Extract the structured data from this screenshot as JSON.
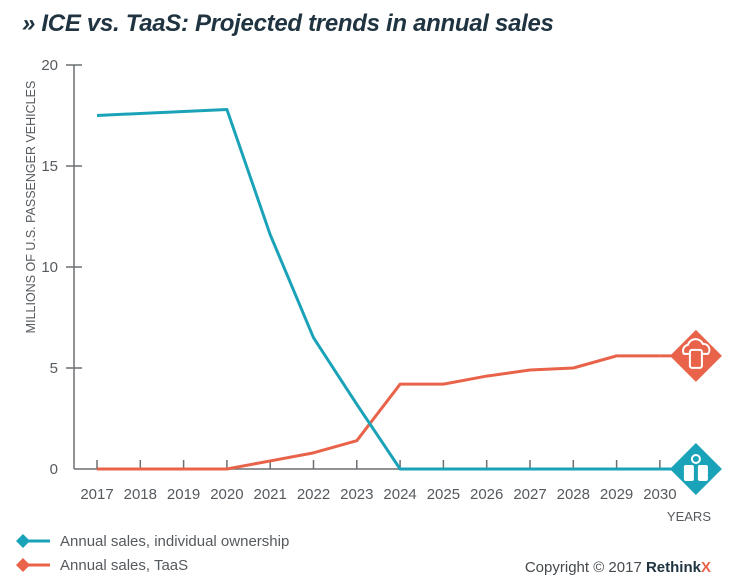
{
  "title": "» ICE vs. TaaS: Projected trends in annual sales",
  "chart_data": {
    "type": "line",
    "title": "ICE vs. TaaS: Projected trends in annual sales",
    "xlabel": "YEARS",
    "ylabel": "MILLIONS OF U.S. PASSENGER VEHICLES",
    "x": [
      "2017",
      "2018",
      "2019",
      "2020",
      "2021",
      "2022",
      "2023",
      "2024",
      "2025",
      "2026",
      "2027",
      "2028",
      "2029",
      "2030"
    ],
    "ylim": [
      0,
      20
    ],
    "yticks": [
      0,
      5,
      10,
      15,
      20
    ],
    "grid": false,
    "legend_position": "bottom-left",
    "series": [
      {
        "name": "Annual sales, individual ownership",
        "color": "#1aa3b8",
        "end_icon": "car-keys-icon",
        "values": [
          17.5,
          17.6,
          17.7,
          17.8,
          11.6,
          6.5,
          3.2,
          0,
          0,
          0,
          0,
          0,
          0,
          0
        ]
      },
      {
        "name": "Annual sales, TaaS",
        "color": "#e8634a",
        "end_icon": "cloud-phone-icon",
        "values": [
          0,
          0,
          0,
          0,
          0.4,
          0.8,
          1.4,
          4.2,
          4.2,
          4.6,
          4.9,
          5.0,
          5.6,
          5.6
        ]
      }
    ]
  },
  "footer": {
    "copyright_prefix": "Copyright © 2017 ",
    "brand_main": "Rethink",
    "brand_x": "X",
    "brand_x_color": "#e8634a"
  }
}
